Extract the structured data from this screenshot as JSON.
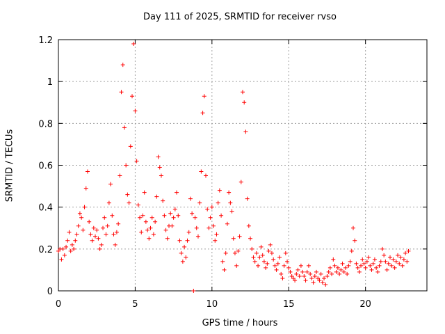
{
  "chart_data": {
    "type": "scatter",
    "title": "Day 111 of 2025, SRMTID for receiver rvso",
    "xlabel": "GPS time / hours",
    "ylabel": "SRMTID / TECUs",
    "xlim": [
      0,
      24
    ],
    "ylim": [
      0,
      1.2
    ],
    "xticks": [
      0,
      5,
      10,
      15,
      20
    ],
    "yticks": [
      0,
      0.2,
      0.4,
      0.6,
      0.8,
      1.0,
      1.2
    ],
    "ytick_labels": [
      "0",
      "0.2",
      "0.4",
      "0.6",
      "0.8",
      "1",
      "1.2"
    ],
    "grid": true,
    "marker": "+",
    "color": "#ff0000",
    "series": [
      {
        "name": "SRMTID",
        "points": [
          [
            0.0,
            0.19
          ],
          [
            0.1,
            0.2
          ],
          [
            0.2,
            0.15
          ],
          [
            0.3,
            0.2
          ],
          [
            0.4,
            0.17
          ],
          [
            0.5,
            0.21
          ],
          [
            0.6,
            0.24
          ],
          [
            0.7,
            0.28
          ],
          [
            0.8,
            0.19
          ],
          [
            0.9,
            0.22
          ],
          [
            1.0,
            0.2
          ],
          [
            1.1,
            0.24
          ],
          [
            1.2,
            0.27
          ],
          [
            1.3,
            0.31
          ],
          [
            1.4,
            0.37
          ],
          [
            1.5,
            0.35
          ],
          [
            1.6,
            0.29
          ],
          [
            1.7,
            0.4
          ],
          [
            1.8,
            0.49
          ],
          [
            1.9,
            0.57
          ],
          [
            2.0,
            0.33
          ],
          [
            2.1,
            0.27
          ],
          [
            2.2,
            0.24
          ],
          [
            2.3,
            0.3
          ],
          [
            2.4,
            0.26
          ],
          [
            2.5,
            0.29
          ],
          [
            2.6,
            0.25
          ],
          [
            2.7,
            0.2
          ],
          [
            2.8,
            0.22
          ],
          [
            2.9,
            0.3
          ],
          [
            3.0,
            0.35
          ],
          [
            3.1,
            0.27
          ],
          [
            3.2,
            0.31
          ],
          [
            3.3,
            0.42
          ],
          [
            3.4,
            0.51
          ],
          [
            3.5,
            0.36
          ],
          [
            3.6,
            0.27
          ],
          [
            3.7,
            0.22
          ],
          [
            3.8,
            0.28
          ],
          [
            3.9,
            0.32
          ],
          [
            4.0,
            0.55
          ],
          [
            4.1,
            0.95
          ],
          [
            4.2,
            1.08
          ],
          [
            4.3,
            0.78
          ],
          [
            4.4,
            0.6
          ],
          [
            4.5,
            0.46
          ],
          [
            4.6,
            0.42
          ],
          [
            4.7,
            0.69
          ],
          [
            4.8,
            0.93
          ],
          [
            4.9,
            1.18
          ],
          [
            5.0,
            0.86
          ],
          [
            5.1,
            0.62
          ],
          [
            5.2,
            0.41
          ],
          [
            5.3,
            0.35
          ],
          [
            5.4,
            0.28
          ],
          [
            5.5,
            0.36
          ],
          [
            5.6,
            0.47
          ],
          [
            5.7,
            0.33
          ],
          [
            5.8,
            0.29
          ],
          [
            5.9,
            0.25
          ],
          [
            6.0,
            0.3
          ],
          [
            6.1,
            0.35
          ],
          [
            6.2,
            0.27
          ],
          [
            6.3,
            0.33
          ],
          [
            6.4,
            0.45
          ],
          [
            6.5,
            0.64
          ],
          [
            6.6,
            0.59
          ],
          [
            6.7,
            0.55
          ],
          [
            6.8,
            0.43
          ],
          [
            6.9,
            0.36
          ],
          [
            7.0,
            0.29
          ],
          [
            7.1,
            0.25
          ],
          [
            7.2,
            0.31
          ],
          [
            7.3,
            0.37
          ],
          [
            7.4,
            0.31
          ],
          [
            7.5,
            0.35
          ],
          [
            7.6,
            0.39
          ],
          [
            7.7,
            0.47
          ],
          [
            7.8,
            0.36
          ],
          [
            7.9,
            0.24
          ],
          [
            8.0,
            0.18
          ],
          [
            8.1,
            0.14
          ],
          [
            8.2,
            0.21
          ],
          [
            8.3,
            0.16
          ],
          [
            8.4,
            0.24
          ],
          [
            8.5,
            0.28
          ],
          [
            8.6,
            0.44
          ],
          [
            8.7,
            0.37
          ],
          [
            8.8,
            0.0
          ],
          [
            8.9,
            0.35
          ],
          [
            9.0,
            0.3
          ],
          [
            9.1,
            0.26
          ],
          [
            9.2,
            0.42
          ],
          [
            9.3,
            0.57
          ],
          [
            9.4,
            0.85
          ],
          [
            9.5,
            0.93
          ],
          [
            9.6,
            0.55
          ],
          [
            9.7,
            0.39
          ],
          [
            9.8,
            0.3
          ],
          [
            9.9,
            0.35
          ],
          [
            10.0,
            0.4
          ],
          [
            10.1,
            0.31
          ],
          [
            10.2,
            0.24
          ],
          [
            10.3,
            0.27
          ],
          [
            10.4,
            0.42
          ],
          [
            10.5,
            0.48
          ],
          [
            10.6,
            0.36
          ],
          [
            10.7,
            0.14
          ],
          [
            10.8,
            0.1
          ],
          [
            10.9,
            0.18
          ],
          [
            11.0,
            0.32
          ],
          [
            11.1,
            0.47
          ],
          [
            11.2,
            0.42
          ],
          [
            11.3,
            0.38
          ],
          [
            11.4,
            0.25
          ],
          [
            11.5,
            0.18
          ],
          [
            11.6,
            0.12
          ],
          [
            11.7,
            0.19
          ],
          [
            11.8,
            0.26
          ],
          [
            11.9,
            0.52
          ],
          [
            12.0,
            0.95
          ],
          [
            12.1,
            0.9
          ],
          [
            12.2,
            0.76
          ],
          [
            12.3,
            0.44
          ],
          [
            12.4,
            0.31
          ],
          [
            12.5,
            0.25
          ],
          [
            12.6,
            0.2
          ],
          [
            12.7,
            0.16
          ],
          [
            12.8,
            0.14
          ],
          [
            12.9,
            0.18
          ],
          [
            13.0,
            0.12
          ],
          [
            13.1,
            0.16
          ],
          [
            13.2,
            0.21
          ],
          [
            13.3,
            0.17
          ],
          [
            13.4,
            0.14
          ],
          [
            13.5,
            0.11
          ],
          [
            13.6,
            0.13
          ],
          [
            13.7,
            0.19
          ],
          [
            13.8,
            0.22
          ],
          [
            13.9,
            0.18
          ],
          [
            14.0,
            0.15
          ],
          [
            14.1,
            0.12
          ],
          [
            14.2,
            0.1
          ],
          [
            14.3,
            0.13
          ],
          [
            14.4,
            0.16
          ],
          [
            14.5,
            0.08
          ],
          [
            14.6,
            0.06
          ],
          [
            14.7,
            0.12
          ],
          [
            14.8,
            0.18
          ],
          [
            14.9,
            0.14
          ],
          [
            15.0,
            0.11
          ],
          [
            15.1,
            0.09
          ],
          [
            15.2,
            0.07
          ],
          [
            15.3,
            0.06
          ],
          [
            15.4,
            0.05
          ],
          [
            15.5,
            0.08
          ],
          [
            15.6,
            0.1
          ],
          [
            15.7,
            0.07
          ],
          [
            15.8,
            0.12
          ],
          [
            15.9,
            0.09
          ],
          [
            16.0,
            0.07
          ],
          [
            16.1,
            0.05
          ],
          [
            16.2,
            0.09
          ],
          [
            16.3,
            0.12
          ],
          [
            16.4,
            0.08
          ],
          [
            16.5,
            0.06
          ],
          [
            16.6,
            0.04
          ],
          [
            16.7,
            0.07
          ],
          [
            16.8,
            0.09
          ],
          [
            16.9,
            0.06
          ],
          [
            17.0,
            0.05
          ],
          [
            17.1,
            0.08
          ],
          [
            17.2,
            0.04
          ],
          [
            17.3,
            0.06
          ],
          [
            17.4,
            0.03
          ],
          [
            17.5,
            0.07
          ],
          [
            17.6,
            0.09
          ],
          [
            17.7,
            0.11
          ],
          [
            17.8,
            0.08
          ],
          [
            17.9,
            0.15
          ],
          [
            18.0,
            0.12
          ],
          [
            18.1,
            0.09
          ],
          [
            18.2,
            0.11
          ],
          [
            18.3,
            0.08
          ],
          [
            18.4,
            0.1
          ],
          [
            18.5,
            0.13
          ],
          [
            18.6,
            0.09
          ],
          [
            18.7,
            0.11
          ],
          [
            18.8,
            0.08
          ],
          [
            18.9,
            0.12
          ],
          [
            19.0,
            0.14
          ],
          [
            19.1,
            0.19
          ],
          [
            19.2,
            0.3
          ],
          [
            19.3,
            0.24
          ],
          [
            19.4,
            0.13
          ],
          [
            19.5,
            0.11
          ],
          [
            19.6,
            0.09
          ],
          [
            19.7,
            0.12
          ],
          [
            19.8,
            0.15
          ],
          [
            19.9,
            0.13
          ],
          [
            20.0,
            0.11
          ],
          [
            20.1,
            0.14
          ],
          [
            20.2,
            0.16
          ],
          [
            20.3,
            0.12
          ],
          [
            20.4,
            0.1
          ],
          [
            20.5,
            0.13
          ],
          [
            20.6,
            0.15
          ],
          [
            20.7,
            0.11
          ],
          [
            20.8,
            0.09
          ],
          [
            20.9,
            0.12
          ],
          [
            21.0,
            0.14
          ],
          [
            21.1,
            0.2
          ],
          [
            21.2,
            0.17
          ],
          [
            21.3,
            0.14
          ],
          [
            21.4,
            0.1
          ],
          [
            21.5,
            0.13
          ],
          [
            21.6,
            0.16
          ],
          [
            21.7,
            0.12
          ],
          [
            21.8,
            0.15
          ],
          [
            21.9,
            0.11
          ],
          [
            22.0,
            0.14
          ],
          [
            22.1,
            0.17
          ],
          [
            22.2,
            0.13
          ],
          [
            22.3,
            0.16
          ],
          [
            22.4,
            0.12
          ],
          [
            22.5,
            0.15
          ],
          [
            22.6,
            0.18
          ],
          [
            22.7,
            0.14
          ],
          [
            22.8,
            0.19
          ]
        ]
      }
    ]
  }
}
